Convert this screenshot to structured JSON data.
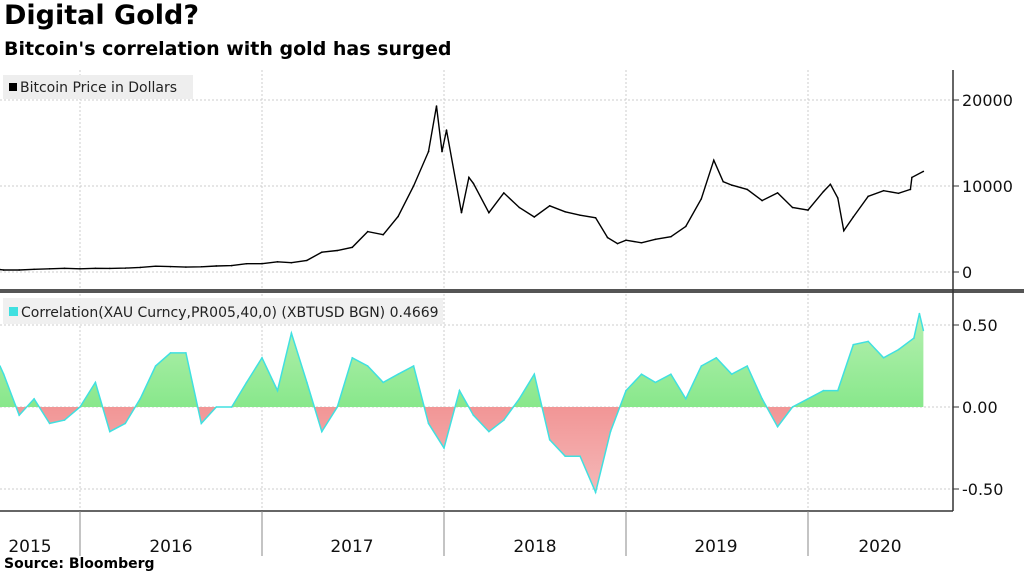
{
  "title": "Digital Gold?",
  "subtitle": "Bitcoin's correlation with gold has surged",
  "source": "Source: Bloomberg",
  "chart_data": [
    {
      "type": "line",
      "legend": "Bitcoin Price in Dollars",
      "color": "#000000",
      "ylim": [
        -2000,
        24000
      ],
      "yticks": [
        0,
        10000,
        20000
      ],
      "ytick_labels": [
        "0",
        "10000",
        "20000"
      ],
      "grid": true,
      "points": [
        [
          "2015-07-01",
          280
        ],
        [
          "2015-08-01",
          230
        ],
        [
          "2015-09-01",
          235
        ],
        [
          "2015-10-01",
          310
        ],
        [
          "2015-11-01",
          370
        ],
        [
          "2015-12-01",
          430
        ],
        [
          "2016-01-01",
          370
        ],
        [
          "2016-02-01",
          435
        ],
        [
          "2016-03-01",
          415
        ],
        [
          "2016-04-01",
          450
        ],
        [
          "2016-05-01",
          530
        ],
        [
          "2016-06-01",
          670
        ],
        [
          "2016-07-01",
          625
        ],
        [
          "2016-08-01",
          575
        ],
        [
          "2016-09-01",
          610
        ],
        [
          "2016-10-01",
          700
        ],
        [
          "2016-11-01",
          745
        ],
        [
          "2016-12-01",
          960
        ],
        [
          "2017-01-01",
          970
        ],
        [
          "2017-02-01",
          1190
        ],
        [
          "2017-03-01",
          1080
        ],
        [
          "2017-04-01",
          1350
        ],
        [
          "2017-05-01",
          2300
        ],
        [
          "2017-06-01",
          2500
        ],
        [
          "2017-07-01",
          2870
        ],
        [
          "2017-08-01",
          4700
        ],
        [
          "2017-09-01",
          4340
        ],
        [
          "2017-10-01",
          6450
        ],
        [
          "2017-11-01",
          10000
        ],
        [
          "2017-12-01",
          14000
        ],
        [
          "2017-12-17",
          19300
        ],
        [
          "2017-12-28",
          14000
        ],
        [
          "2018-01-06",
          16500
        ],
        [
          "2018-02-05",
          6900
        ],
        [
          "2018-02-20",
          11000
        ],
        [
          "2018-03-01",
          10300
        ],
        [
          "2018-04-01",
          6900
        ],
        [
          "2018-05-01",
          9200
        ],
        [
          "2018-06-01",
          7500
        ],
        [
          "2018-07-01",
          6400
        ],
        [
          "2018-08-01",
          7700
        ],
        [
          "2018-09-01",
          7000
        ],
        [
          "2018-10-01",
          6600
        ],
        [
          "2018-11-01",
          6300
        ],
        [
          "2018-11-25",
          4000
        ],
        [
          "2018-12-15",
          3300
        ],
        [
          "2019-01-01",
          3700
        ],
        [
          "2019-02-01",
          3400
        ],
        [
          "2019-03-01",
          3800
        ],
        [
          "2019-04-01",
          4100
        ],
        [
          "2019-05-01",
          5300
        ],
        [
          "2019-06-01",
          8500
        ],
        [
          "2019-06-26",
          13000
        ],
        [
          "2019-07-15",
          10500
        ],
        [
          "2019-08-01",
          10100
        ],
        [
          "2019-09-01",
          9600
        ],
        [
          "2019-10-01",
          8300
        ],
        [
          "2019-11-01",
          9200
        ],
        [
          "2019-12-01",
          7500
        ],
        [
          "2020-01-01",
          7200
        ],
        [
          "2020-02-01",
          9350
        ],
        [
          "2020-02-15",
          10200
        ],
        [
          "2020-03-01",
          8600
        ],
        [
          "2020-03-13",
          4800
        ],
        [
          "2020-04-01",
          6400
        ],
        [
          "2020-05-01",
          8800
        ],
        [
          "2020-06-01",
          9450
        ],
        [
          "2020-07-01",
          9150
        ],
        [
          "2020-07-25",
          9600
        ],
        [
          "2020-07-28",
          11000
        ],
        [
          "2020-08-20",
          11700
        ]
      ]
    },
    {
      "type": "area",
      "legend": "Correlation(XAU Curncy,PR005,40,0) (XBTUSD BGN) 0.4669",
      "line_color": "#40e0e0",
      "positive_color": "#66e27a",
      "negative_color": "#ee7070",
      "ylim": [
        -0.62,
        0.62
      ],
      "yticks": [
        -0.5,
        0,
        0.5
      ],
      "ytick_labels": [
        "-0.50",
        "0.00",
        "0.50"
      ],
      "grid": true,
      "points": [
        [
          "2015-07-01",
          0.25
        ],
        [
          "2015-08-01",
          0.2
        ],
        [
          "2015-09-01",
          -0.05
        ],
        [
          "2015-10-01",
          0.05
        ],
        [
          "2015-11-01",
          -0.1
        ],
        [
          "2015-12-01",
          -0.08
        ],
        [
          "2016-01-01",
          0.0
        ],
        [
          "2016-02-01",
          0.15
        ],
        [
          "2016-03-01",
          -0.15
        ],
        [
          "2016-04-01",
          -0.1
        ],
        [
          "2016-05-01",
          0.05
        ],
        [
          "2016-06-01",
          0.25
        ],
        [
          "2016-07-01",
          0.33
        ],
        [
          "2016-08-01",
          0.33
        ],
        [
          "2016-09-01",
          -0.1
        ],
        [
          "2016-10-01",
          0.0
        ],
        [
          "2016-11-01",
          0.0
        ],
        [
          "2016-12-01",
          0.15
        ],
        [
          "2017-01-01",
          0.3
        ],
        [
          "2017-02-01",
          0.1
        ],
        [
          "2017-03-01",
          0.45
        ],
        [
          "2017-04-01",
          0.15
        ],
        [
          "2017-05-01",
          -0.15
        ],
        [
          "2017-06-01",
          0.0
        ],
        [
          "2017-07-01",
          0.3
        ],
        [
          "2017-08-01",
          0.25
        ],
        [
          "2017-09-01",
          0.15
        ],
        [
          "2017-10-01",
          0.2
        ],
        [
          "2017-11-01",
          0.25
        ],
        [
          "2017-12-01",
          -0.1
        ],
        [
          "2018-01-01",
          -0.25
        ],
        [
          "2018-02-01",
          0.1
        ],
        [
          "2018-03-01",
          -0.05
        ],
        [
          "2018-04-01",
          -0.15
        ],
        [
          "2018-05-01",
          -0.08
        ],
        [
          "2018-06-01",
          0.05
        ],
        [
          "2018-07-01",
          0.2
        ],
        [
          "2018-08-01",
          -0.2
        ],
        [
          "2018-09-01",
          -0.3
        ],
        [
          "2018-10-01",
          -0.3
        ],
        [
          "2018-11-01",
          -0.52
        ],
        [
          "2018-12-01",
          -0.15
        ],
        [
          "2019-01-01",
          0.1
        ],
        [
          "2019-02-01",
          0.2
        ],
        [
          "2019-03-01",
          0.15
        ],
        [
          "2019-04-01",
          0.2
        ],
        [
          "2019-05-01",
          0.05
        ],
        [
          "2019-06-01",
          0.25
        ],
        [
          "2019-07-01",
          0.3
        ],
        [
          "2019-08-01",
          0.2
        ],
        [
          "2019-09-01",
          0.25
        ],
        [
          "2019-10-01",
          0.05
        ],
        [
          "2019-11-01",
          -0.12
        ],
        [
          "2019-12-01",
          0.0
        ],
        [
          "2020-01-01",
          0.05
        ],
        [
          "2020-02-01",
          0.1
        ],
        [
          "2020-03-01",
          0.1
        ],
        [
          "2020-04-01",
          0.38
        ],
        [
          "2020-05-01",
          0.4
        ],
        [
          "2020-06-01",
          0.3
        ],
        [
          "2020-07-01",
          0.35
        ],
        [
          "2020-08-01",
          0.42
        ],
        [
          "2020-08-12",
          0.57
        ],
        [
          "2020-08-20",
          0.4669
        ]
      ]
    }
  ],
  "x_axis": {
    "year_labels": [
      "2015",
      "2016",
      "2017",
      "2018",
      "2019",
      "2020"
    ]
  }
}
